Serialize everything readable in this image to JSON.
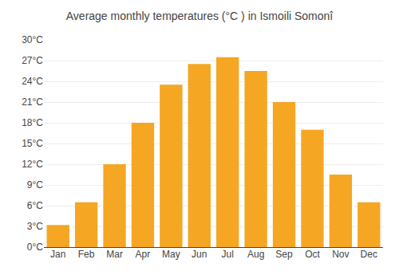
{
  "chart_data": {
    "type": "bar",
    "title": "Average monthly temperatures (°C ) in Ismoili Somonî",
    "categories": [
      "Jan",
      "Feb",
      "Mar",
      "Apr",
      "May",
      "Jun",
      "Jul",
      "Aug",
      "Sep",
      "Oct",
      "Nov",
      "Dec"
    ],
    "values": [
      3.2,
      6.5,
      12.0,
      18.0,
      23.5,
      26.5,
      27.5,
      25.5,
      21.0,
      17.0,
      10.5,
      6.5
    ],
    "color": "#F5A623",
    "ylim": [
      0,
      30
    ],
    "yticks": [
      {
        "value": 0,
        "label": "0°C"
      },
      {
        "value": 3,
        "label": "3°C"
      },
      {
        "value": 6,
        "label": "6°C"
      },
      {
        "value": 9,
        "label": "9°C"
      },
      {
        "value": 12,
        "label": "12°C"
      },
      {
        "value": 15,
        "label": "15°C"
      },
      {
        "value": 18,
        "label": "18°C"
      },
      {
        "value": 21,
        "label": "21°C"
      },
      {
        "value": 24,
        "label": "24°C"
      },
      {
        "value": 27,
        "label": "27°C"
      },
      {
        "value": 30,
        "label": "30°C"
      }
    ],
    "grid": true
  }
}
